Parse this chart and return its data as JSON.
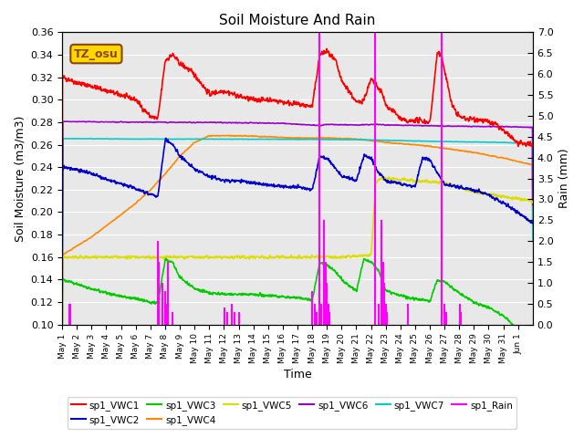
{
  "title": "Soil Moisture And Rain",
  "xlabel": "Time",
  "ylabel_left": "Soil Moisture (m3/m3)",
  "ylabel_right": "Rain (mm)",
  "ylim_left": [
    0.1,
    0.36
  ],
  "ylim_right": [
    0.0,
    7.0
  ],
  "annotation_text": "TZ_osu",
  "annotation_color": "#8B4513",
  "annotation_bg": "#FFD700",
  "colors": {
    "sp1_VWC1": "#FF0000",
    "sp1_VWC2": "#0000CC",
    "sp1_VWC3": "#00CC00",
    "sp1_VWC4": "#FF8800",
    "sp1_VWC5": "#DDDD00",
    "sp1_VWC6": "#9900CC",
    "sp1_VWC7": "#00CCCC",
    "sp1_Rain": "#FF00FF"
  },
  "bg_color": "#E8E8E8",
  "n_days": 32,
  "pts_per_day": 48
}
